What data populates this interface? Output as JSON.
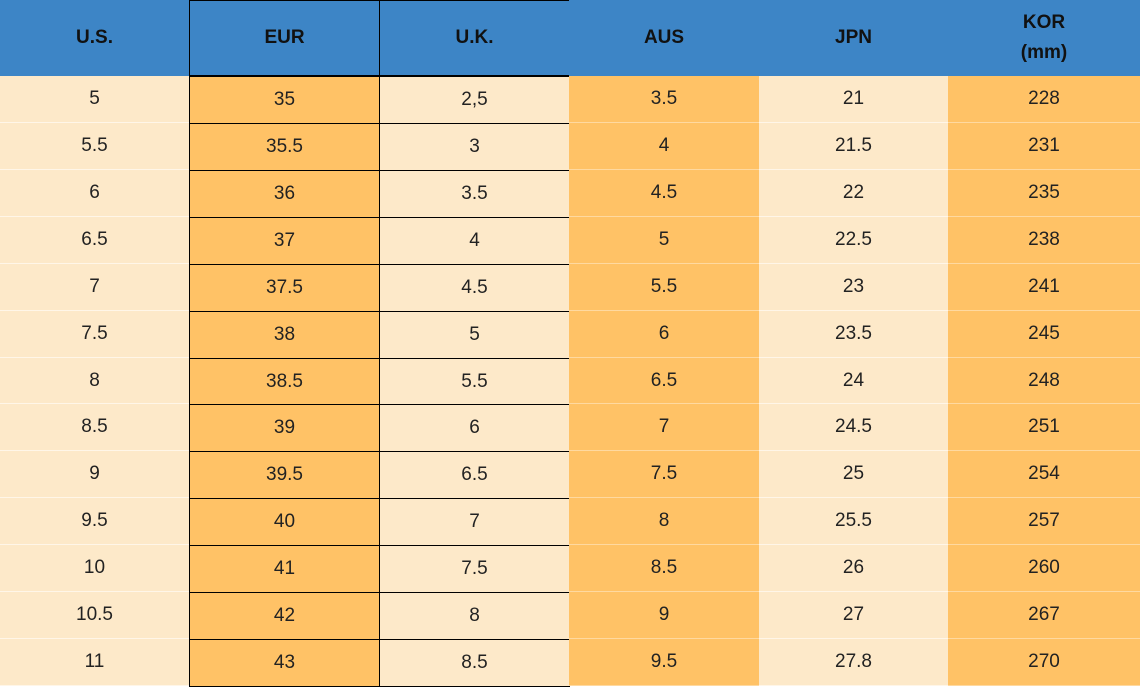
{
  "table": {
    "headers": [
      "U.S.",
      "EUR",
      "U.K.",
      "AUS",
      "JPN",
      "KOR (mm)"
    ],
    "rows": [
      [
        "5",
        "35",
        "2,5",
        "3.5",
        "21",
        "228"
      ],
      [
        "5.5",
        "35.5",
        "3",
        "4",
        "21.5",
        "231"
      ],
      [
        "6",
        "36",
        "3.5",
        "4.5",
        "22",
        "235"
      ],
      [
        "6.5",
        "37",
        "4",
        "5",
        "22.5",
        "238"
      ],
      [
        "7",
        "37.5",
        "4.5",
        "5.5",
        "23",
        "241"
      ],
      [
        "7.5",
        "38",
        "5",
        "6",
        "23.5",
        "245"
      ],
      [
        "8",
        "38.5",
        "5.5",
        "6.5",
        "24",
        "248"
      ],
      [
        "8.5",
        "39",
        "6",
        "7",
        "24.5",
        "251"
      ],
      [
        "9",
        "39.5",
        "6.5",
        "7.5",
        "25",
        "254"
      ],
      [
        "9.5",
        "40",
        "7",
        "8",
        "25.5",
        "257"
      ],
      [
        "10",
        "41",
        "7.5",
        "8.5",
        "26",
        "260"
      ],
      [
        "10.5",
        "42",
        "8",
        "9",
        "27",
        "267"
      ],
      [
        "11",
        "43",
        "8.5",
        "9.5",
        "27.8",
        "270"
      ]
    ]
  }
}
